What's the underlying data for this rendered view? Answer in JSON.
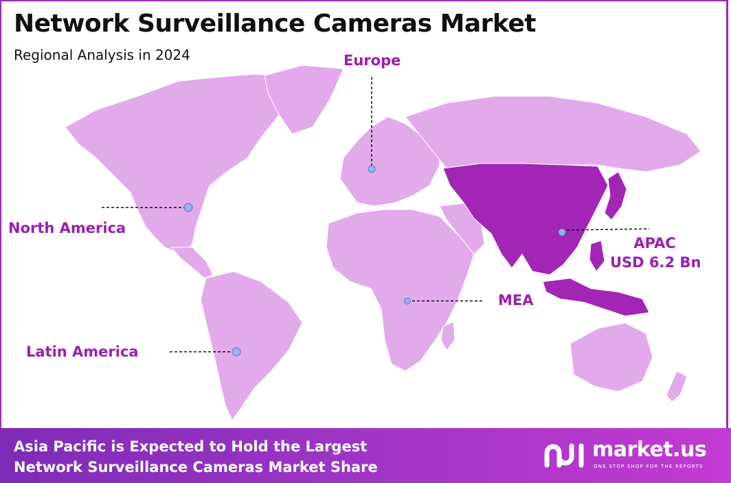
{
  "header": {
    "title": "Network Surveillance Cameras Market",
    "subtitle": "Regional Analysis in 2024"
  },
  "regions": [
    {
      "name": "North America",
      "highlighted": false
    },
    {
      "name": "Europe",
      "highlighted": false
    },
    {
      "name": "APAC",
      "value": "USD 6.2 Bn",
      "highlighted": true
    },
    {
      "name": "MEA",
      "highlighted": false
    },
    {
      "name": "Latin America",
      "highlighted": false
    }
  ],
  "footer": {
    "line1": "Asia Pacific is Expected to Hold the Largest",
    "line2": "Network Surveillance Cameras Market Share"
  },
  "brand": {
    "name": "market.us",
    "tagline": "ONE STOP SHOP FOR THE REPORTS",
    "logo_icon": "market-us-logo-icon"
  },
  "colors": {
    "land": "#e2aaeb",
    "highlight": "#a325b5",
    "label": "#9b1fb0",
    "marker": "#8fb4e8",
    "footer_start": "#7d2bb8",
    "footer_end": "#c33ad2"
  }
}
